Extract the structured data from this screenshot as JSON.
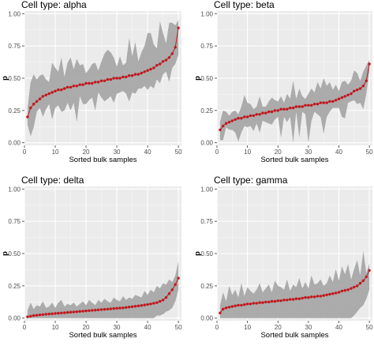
{
  "chart_data": [
    {
      "type": "line",
      "title": "Cell type: alpha",
      "xlabel": "Sorted bulk samples",
      "ylabel": "p",
      "xlim": [
        0,
        51
      ],
      "ylim": [
        -0.02,
        1.02
      ],
      "xticks": [
        0,
        10,
        20,
        30,
        40,
        50
      ],
      "yticks": [
        "0.00",
        "0.25",
        "0.50",
        "0.75",
        "1.00"
      ],
      "x": [
        1,
        2,
        3,
        4,
        5,
        6,
        7,
        8,
        9,
        10,
        11,
        12,
        13,
        14,
        15,
        16,
        17,
        18,
        19,
        20,
        21,
        22,
        23,
        24,
        25,
        26,
        27,
        28,
        29,
        30,
        31,
        32,
        33,
        34,
        35,
        36,
        37,
        38,
        39,
        40,
        41,
        42,
        43,
        44,
        45,
        46,
        47,
        48,
        49,
        50
      ],
      "series": [
        {
          "values": [
            0.2,
            0.27,
            0.3,
            0.32,
            0.34,
            0.36,
            0.37,
            0.38,
            0.39,
            0.4,
            0.41,
            0.41,
            0.42,
            0.43,
            0.43,
            0.44,
            0.44,
            0.45,
            0.45,
            0.46,
            0.46,
            0.46,
            0.47,
            0.47,
            0.48,
            0.48,
            0.49,
            0.49,
            0.5,
            0.5,
            0.5,
            0.51,
            0.51,
            0.52,
            0.52,
            0.53,
            0.53,
            0.54,
            0.55,
            0.56,
            0.57,
            0.58,
            0.6,
            0.61,
            0.63,
            0.64,
            0.66,
            0.69,
            0.74,
            0.89
          ],
          "lower": [
            0.14,
            0.05,
            0.12,
            0.24,
            0.27,
            0.2,
            0.26,
            0.3,
            0.18,
            0.27,
            0.29,
            0.24,
            0.25,
            0.31,
            0.25,
            0.31,
            0.16,
            0.36,
            0.3,
            0.3,
            0.33,
            0.35,
            0.25,
            0.39,
            0.35,
            0.32,
            0.34,
            0.36,
            0.31,
            0.38,
            0.39,
            0.4,
            0.38,
            0.32,
            0.39,
            0.38,
            0.42,
            0.42,
            0.44,
            0.41,
            0.44,
            0.42,
            0.49,
            0.46,
            0.53,
            0.55,
            0.47,
            0.58,
            0.61,
            0.68
          ],
          "upper": [
            0.27,
            0.47,
            0.53,
            0.49,
            0.52,
            0.53,
            0.49,
            0.47,
            0.62,
            0.58,
            0.55,
            0.66,
            0.51,
            0.62,
            0.66,
            0.57,
            0.65,
            0.6,
            0.61,
            0.54,
            0.57,
            0.61,
            0.62,
            0.56,
            0.63,
            0.69,
            0.72,
            0.7,
            0.66,
            0.59,
            0.67,
            0.6,
            0.62,
            0.81,
            0.67,
            0.78,
            0.63,
            0.7,
            0.75,
            0.85,
            0.85,
            0.76,
            0.73,
            0.94,
            0.85,
            0.77,
            0.93,
            0.93,
            0.91,
            0.95
          ]
        }
      ],
      "colors": {
        "line": "#c0191f",
        "band": "#a8a8a8"
      }
    },
    {
      "type": "line",
      "title": "Cell type: beta",
      "xlabel": "Sorted bulk samples",
      "ylabel": "p",
      "xlim": [
        0,
        51
      ],
      "ylim": [
        -0.02,
        1.02
      ],
      "xticks": [
        0,
        10,
        20,
        30,
        40,
        50
      ],
      "yticks": [
        "0.00",
        "0.25",
        "0.50",
        "0.75",
        "1.00"
      ],
      "x": [
        1,
        2,
        3,
        4,
        5,
        6,
        7,
        8,
        9,
        10,
        11,
        12,
        13,
        14,
        15,
        16,
        17,
        18,
        19,
        20,
        21,
        22,
        23,
        24,
        25,
        26,
        27,
        28,
        29,
        30,
        31,
        32,
        33,
        34,
        35,
        36,
        37,
        38,
        39,
        40,
        41,
        42,
        43,
        44,
        45,
        46,
        47,
        48,
        49,
        50
      ],
      "series": [
        {
          "values": [
            0.1,
            0.13,
            0.15,
            0.16,
            0.17,
            0.18,
            0.19,
            0.19,
            0.2,
            0.2,
            0.21,
            0.21,
            0.22,
            0.22,
            0.23,
            0.23,
            0.24,
            0.24,
            0.25,
            0.25,
            0.26,
            0.26,
            0.26,
            0.27,
            0.27,
            0.28,
            0.28,
            0.28,
            0.29,
            0.29,
            0.29,
            0.3,
            0.3,
            0.31,
            0.31,
            0.31,
            0.32,
            0.32,
            0.33,
            0.34,
            0.35,
            0.36,
            0.37,
            0.38,
            0.4,
            0.41,
            0.42,
            0.44,
            0.48,
            0.61
          ],
          "lower": [
            0.02,
            0.02,
            0.12,
            0.1,
            0.1,
            0.08,
            0.01,
            0.08,
            0.13,
            0.12,
            0.13,
            0.09,
            0.15,
            0.08,
            0.17,
            0.16,
            0.15,
            0.14,
            0.18,
            0.2,
            0.04,
            0.2,
            0.16,
            0.2,
            0.0,
            0.24,
            0.04,
            0.24,
            0.22,
            0.0,
            0.17,
            0.24,
            0.22,
            0.2,
            0.07,
            0.2,
            0.24,
            0.27,
            0.27,
            0.27,
            0.2,
            0.19,
            0.31,
            0.32,
            0.33,
            0.3,
            0.31,
            0.26,
            0.38,
            0.55
          ],
          "upper": [
            0.16,
            0.25,
            0.24,
            0.21,
            0.24,
            0.25,
            0.22,
            0.28,
            0.37,
            0.31,
            0.3,
            0.26,
            0.28,
            0.36,
            0.28,
            0.28,
            0.32,
            0.35,
            0.33,
            0.32,
            0.36,
            0.31,
            0.38,
            0.34,
            0.48,
            0.34,
            0.42,
            0.36,
            0.34,
            0.38,
            0.42,
            0.39,
            0.47,
            0.42,
            0.5,
            0.44,
            0.47,
            0.41,
            0.45,
            0.4,
            0.47,
            0.48,
            0.45,
            0.48,
            0.56,
            0.54,
            0.48,
            0.55,
            0.6,
            0.64
          ]
        }
      ],
      "colors": {
        "line": "#c0191f",
        "band": "#a8a8a8"
      }
    },
    {
      "type": "line",
      "title": "Cell type: delta",
      "xlabel": "Sorted bulk samples",
      "ylabel": "p",
      "xlim": [
        0,
        51
      ],
      "ylim": [
        -0.02,
        1.02
      ],
      "xticks": [
        0,
        10,
        20,
        30,
        40,
        50
      ],
      "yticks": [
        "0.00",
        "0.25",
        "0.50",
        "0.75",
        "1.00"
      ],
      "x": [
        1,
        2,
        3,
        4,
        5,
        6,
        7,
        8,
        9,
        10,
        11,
        12,
        13,
        14,
        15,
        16,
        17,
        18,
        19,
        20,
        21,
        22,
        23,
        24,
        25,
        26,
        27,
        28,
        29,
        30,
        31,
        32,
        33,
        34,
        35,
        36,
        37,
        38,
        39,
        40,
        41,
        42,
        43,
        44,
        45,
        46,
        47,
        48,
        49,
        50
      ],
      "series": [
        {
          "values": [
            0.01,
            0.015,
            0.02,
            0.022,
            0.025,
            0.027,
            0.03,
            0.032,
            0.034,
            0.036,
            0.038,
            0.04,
            0.042,
            0.044,
            0.046,
            0.048,
            0.05,
            0.052,
            0.054,
            0.056,
            0.058,
            0.06,
            0.062,
            0.064,
            0.066,
            0.068,
            0.07,
            0.072,
            0.074,
            0.076,
            0.078,
            0.08,
            0.083,
            0.086,
            0.089,
            0.092,
            0.095,
            0.098,
            0.102,
            0.106,
            0.11,
            0.115,
            0.12,
            0.13,
            0.14,
            0.16,
            0.19,
            0.22,
            0.26,
            0.31
          ],
          "lower": [
            0.0,
            0.0,
            0.0,
            0.0,
            0.0,
            0.0,
            0.0,
            0.0,
            0.0,
            0.0,
            0.0,
            0.0,
            0.0,
            0.0,
            0.0,
            0.0,
            0.0,
            0.0,
            0.0,
            0.0,
            0.0,
            0.0,
            0.0,
            0.0,
            0.0,
            0.0,
            0.0,
            0.0,
            0.0,
            0.0,
            0.0,
            0.0,
            0.0,
            0.0,
            0.0,
            0.0,
            0.0,
            0.0,
            0.0,
            0.0,
            0.0,
            0.0,
            0.02,
            0.02,
            0.03,
            0.05,
            0.06,
            0.08,
            0.13,
            0.22
          ],
          "upper": [
            0.06,
            0.12,
            0.07,
            0.1,
            0.09,
            0.13,
            0.08,
            0.09,
            0.12,
            0.08,
            0.12,
            0.14,
            0.09,
            0.11,
            0.1,
            0.12,
            0.09,
            0.11,
            0.13,
            0.1,
            0.14,
            0.12,
            0.1,
            0.14,
            0.12,
            0.15,
            0.13,
            0.12,
            0.16,
            0.14,
            0.13,
            0.17,
            0.14,
            0.16,
            0.15,
            0.18,
            0.17,
            0.16,
            0.21,
            0.18,
            0.22,
            0.2,
            0.25,
            0.23,
            0.27,
            0.26,
            0.3,
            0.28,
            0.33,
            0.44
          ]
        }
      ],
      "colors": {
        "line": "#c0191f",
        "band": "#a8a8a8"
      }
    },
    {
      "type": "line",
      "title": "Cell type: gamma",
      "xlabel": "Sorted bulk samples",
      "ylabel": "p",
      "xlim": [
        0,
        51
      ],
      "ylim": [
        -0.02,
        1.02
      ],
      "xticks": [
        0,
        10,
        20,
        30,
        40,
        50
      ],
      "yticks": [
        "0.00",
        "0.25",
        "0.50",
        "0.75",
        "1.00"
      ],
      "x": [
        1,
        2,
        3,
        4,
        5,
        6,
        7,
        8,
        9,
        10,
        11,
        12,
        13,
        14,
        15,
        16,
        17,
        18,
        19,
        20,
        21,
        22,
        23,
        24,
        25,
        26,
        27,
        28,
        29,
        30,
        31,
        32,
        33,
        34,
        35,
        36,
        37,
        38,
        39,
        40,
        41,
        42,
        43,
        44,
        45,
        46,
        47,
        48,
        49,
        50
      ],
      "series": [
        {
          "values": [
            0.04,
            0.07,
            0.08,
            0.085,
            0.09,
            0.095,
            0.1,
            0.1,
            0.105,
            0.11,
            0.11,
            0.115,
            0.115,
            0.12,
            0.12,
            0.125,
            0.125,
            0.13,
            0.13,
            0.135,
            0.135,
            0.14,
            0.14,
            0.145,
            0.145,
            0.15,
            0.15,
            0.155,
            0.16,
            0.16,
            0.165,
            0.165,
            0.17,
            0.17,
            0.175,
            0.18,
            0.185,
            0.19,
            0.195,
            0.2,
            0.21,
            0.215,
            0.22,
            0.23,
            0.24,
            0.25,
            0.27,
            0.29,
            0.32,
            0.37
          ],
          "lower": [
            0.0,
            0.0,
            0.0,
            0.0,
            0.0,
            0.0,
            0.0,
            0.0,
            0.0,
            0.0,
            0.0,
            0.0,
            0.0,
            0.0,
            0.0,
            0.0,
            0.0,
            0.0,
            0.0,
            0.0,
            0.0,
            0.0,
            0.0,
            0.0,
            0.0,
            0.0,
            0.0,
            0.0,
            0.0,
            0.0,
            0.0,
            0.0,
            0.0,
            0.0,
            0.0,
            0.0,
            0.0,
            0.0,
            0.0,
            0.0,
            0.0,
            0.0,
            0.0,
            0.0,
            0.02,
            0.05,
            0.08,
            0.1,
            0.15,
            0.22
          ],
          "upper": [
            0.1,
            0.2,
            0.13,
            0.25,
            0.18,
            0.22,
            0.16,
            0.27,
            0.17,
            0.24,
            0.21,
            0.19,
            0.22,
            0.27,
            0.2,
            0.23,
            0.26,
            0.2,
            0.29,
            0.25,
            0.24,
            0.22,
            0.3,
            0.21,
            0.26,
            0.24,
            0.31,
            0.23,
            0.28,
            0.23,
            0.33,
            0.26,
            0.27,
            0.3,
            0.25,
            0.27,
            0.33,
            0.28,
            0.38,
            0.29,
            0.4,
            0.34,
            0.42,
            0.3,
            0.38,
            0.45,
            0.33,
            0.52,
            0.35,
            0.42
          ]
        }
      ],
      "colors": {
        "line": "#c0191f",
        "band": "#a8a8a8"
      }
    }
  ]
}
